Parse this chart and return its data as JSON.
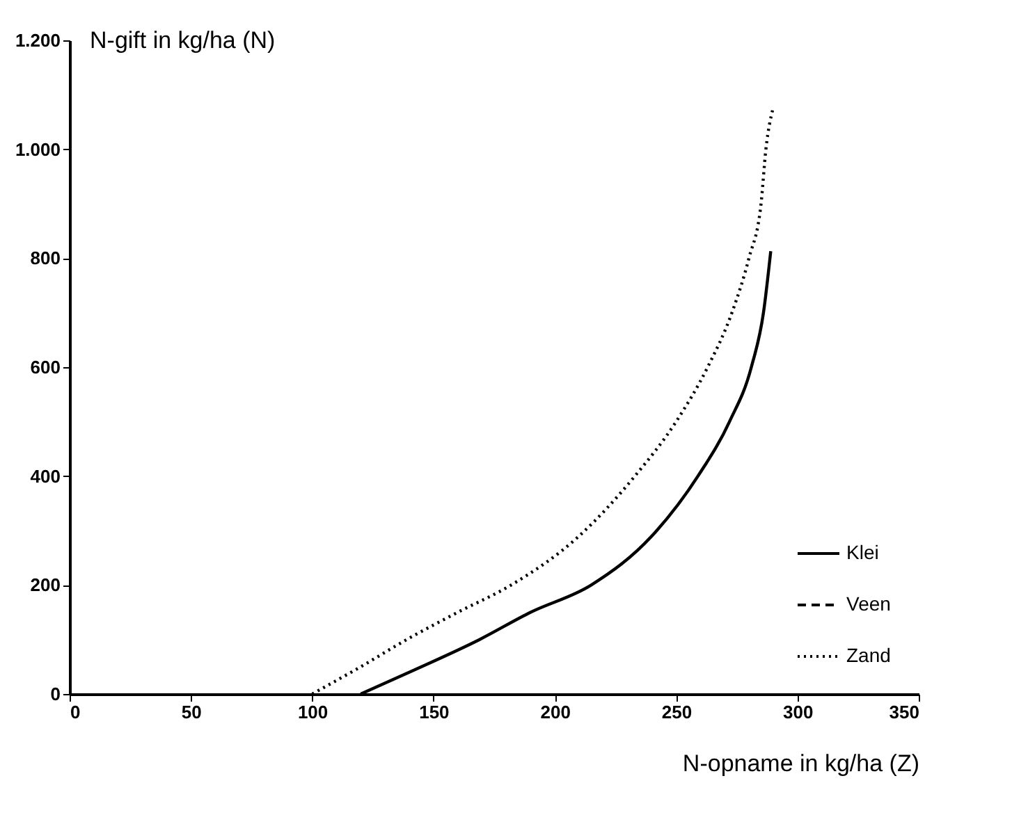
{
  "chart_data": {
    "type": "line",
    "xlabel": "N-opname in kg/ha (Z)",
    "ylabel": "N-gift in kg/ha (N)",
    "xlim": [
      0,
      350
    ],
    "xticks": [
      0,
      50,
      100,
      150,
      200,
      250,
      300,
      350
    ],
    "ylim": [
      0,
      1200
    ],
    "yticks": [
      0,
      200,
      400,
      600,
      800,
      {
        "value": 1000,
        "label": "1.000"
      },
      {
        "value": 1200,
        "label": "1.200"
      }
    ],
    "grid": false,
    "legend": "bottom right",
    "series": [
      {
        "name": "Klei",
        "color": "#000000",
        "line_style": "solid",
        "x": [
          120,
          140,
          169,
          190,
          215,
          240,
          259,
          272,
          281,
          286,
          289
        ],
        "values": [
          0,
          40,
          100,
          150,
          200,
          290,
          400,
          500,
          600,
          700,
          813
        ]
      },
      {
        "name": "Veen",
        "color": "#000000",
        "line_style": "dashed"
      },
      {
        "name": "Zand",
        "color": "#000000",
        "line_style": "dotted",
        "x": [
          100,
          120,
          139,
          160,
          182,
          210,
          233,
          250,
          263,
          273,
          280,
          285,
          287,
          290
        ],
        "values": [
          0,
          50,
          100,
          150,
          200,
          290,
          400,
          500,
          600,
          700,
          800,
          900,
          1000,
          1076
        ]
      }
    ]
  }
}
